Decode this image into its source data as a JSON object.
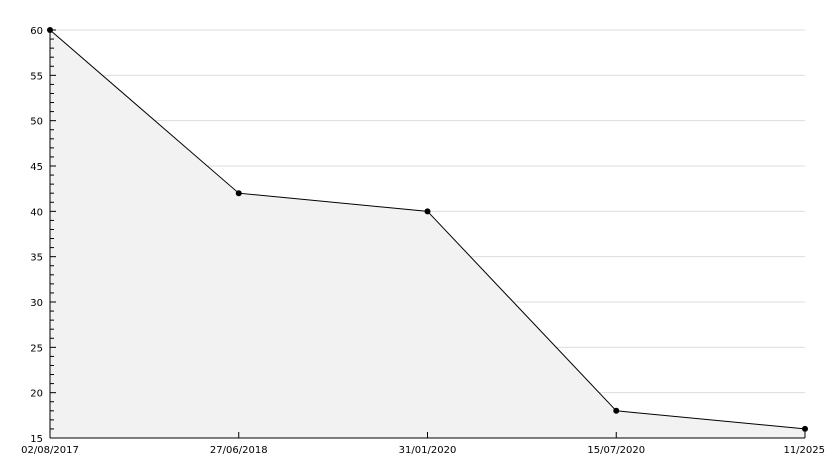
{
  "chart_data": {
    "type": "area",
    "categories": [
      "02/08/2017",
      "27/06/2018",
      "31/01/2020",
      "15/07/2020",
      "11/2025"
    ],
    "values": [
      60,
      42,
      40,
      18,
      16
    ],
    "title": "",
    "xlabel": "",
    "ylabel": "",
    "ylim": [
      15,
      60
    ],
    "yticks": [
      15,
      20,
      25,
      30,
      35,
      40,
      45,
      50,
      55,
      60
    ],
    "y_minor_step": 1,
    "grid": true,
    "legend": "none",
    "colors": {
      "line": "#000000",
      "fill": "#f2f2f2",
      "grid": "#dddddd",
      "marker": "#000000"
    }
  }
}
